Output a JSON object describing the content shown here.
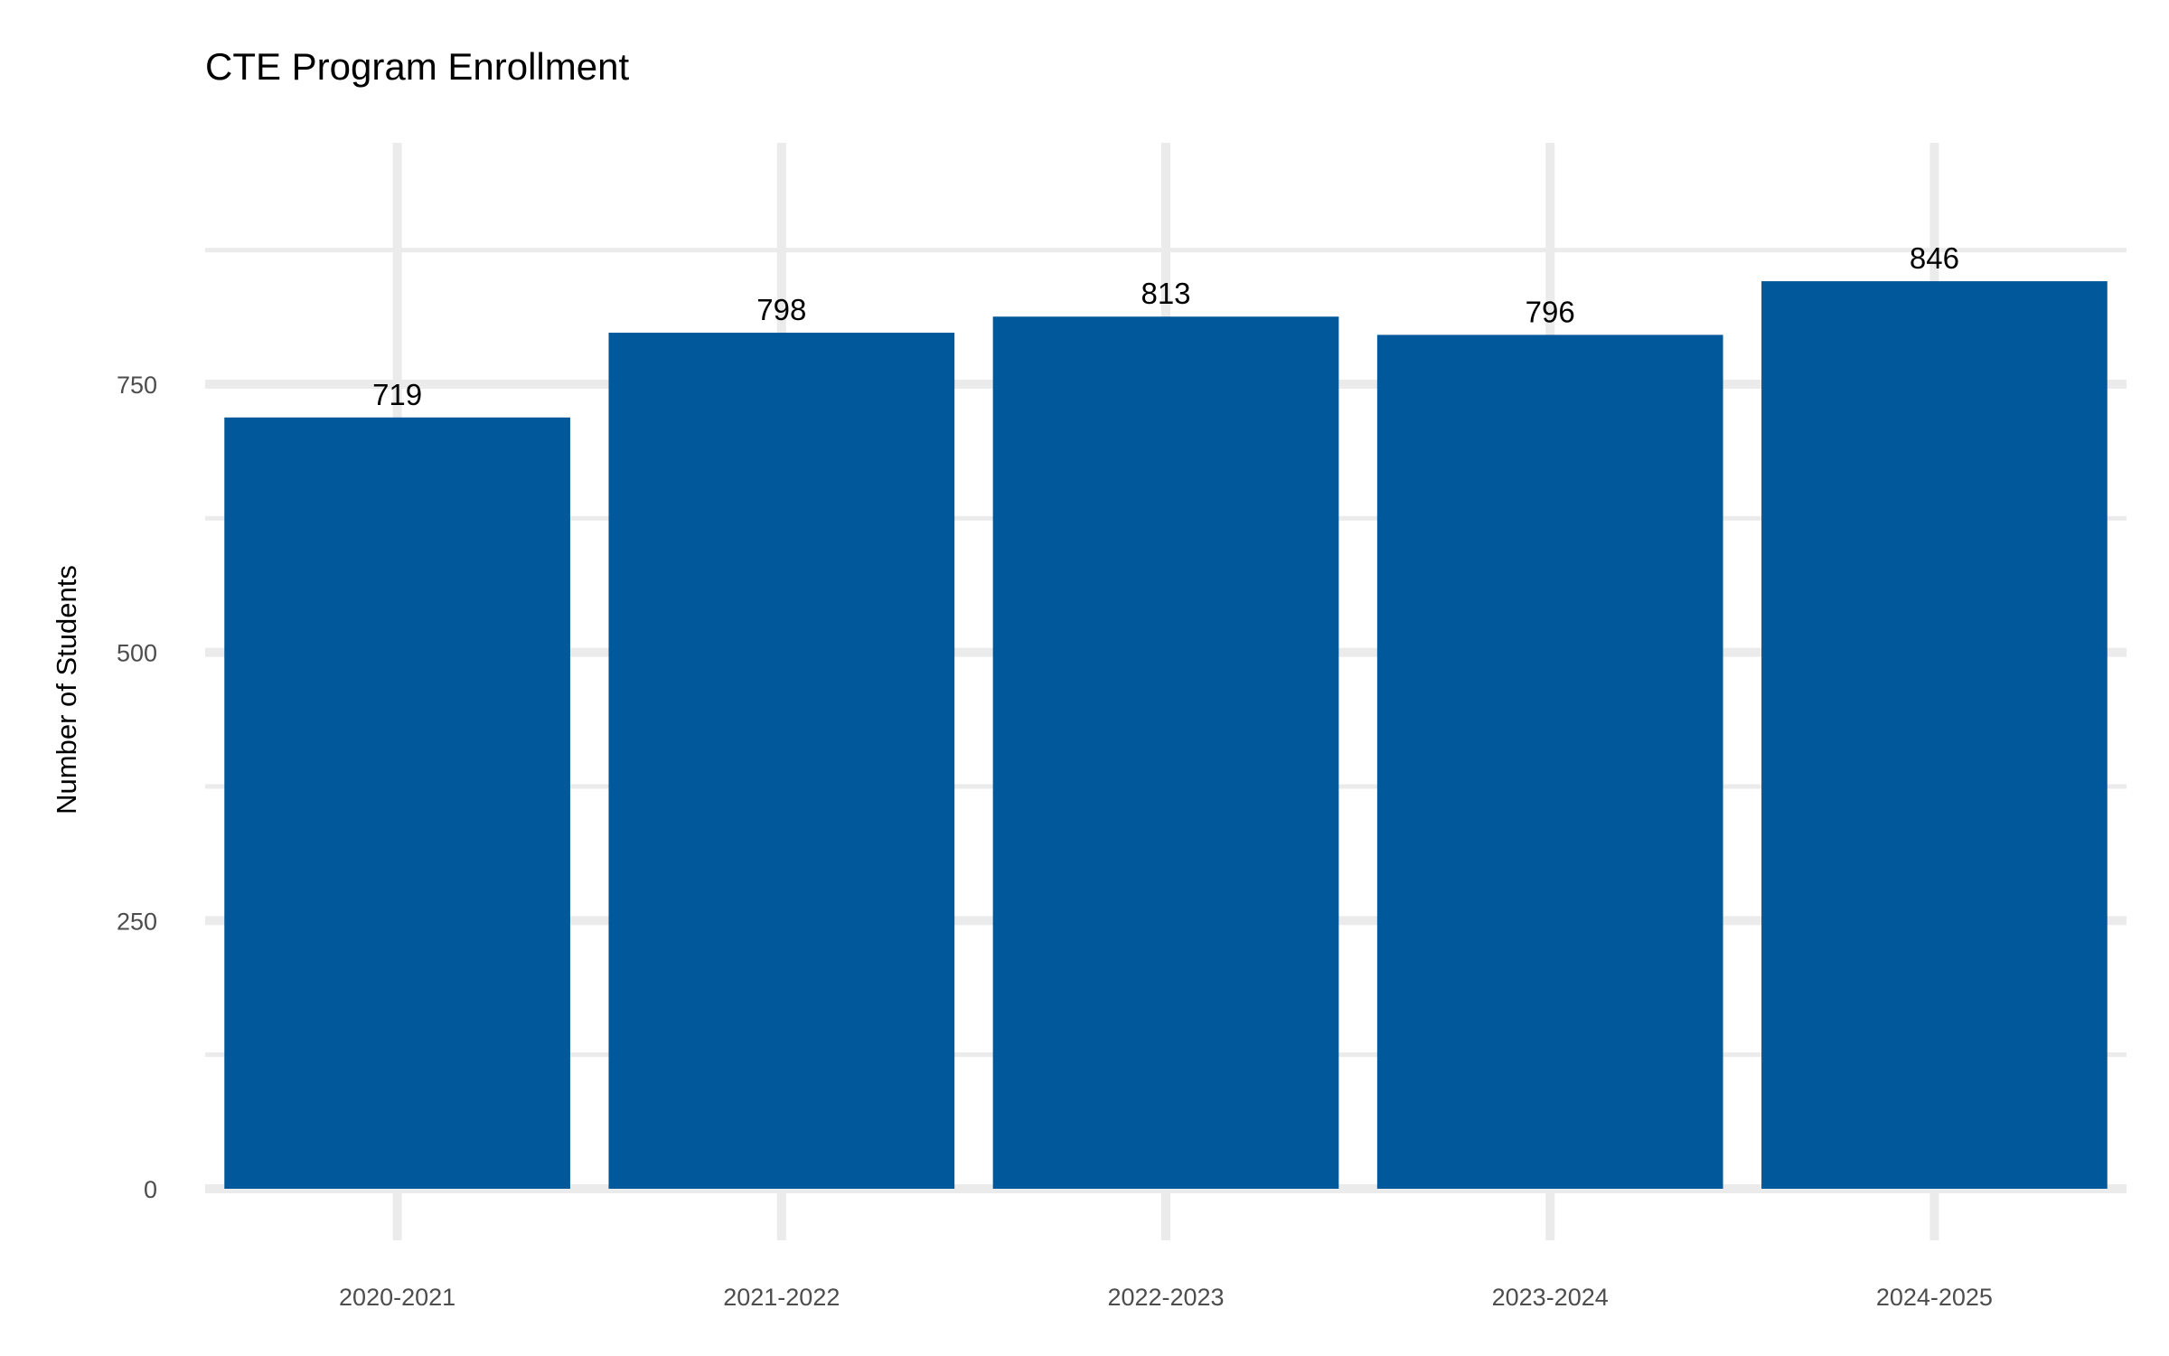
{
  "chart_data": {
    "type": "bar",
    "title": "CTE Program Enrollment",
    "xlabel": "",
    "ylabel": "Number of Students",
    "categories": [
      "2020-2021",
      "2021-2022",
      "2022-2023",
      "2023-2024",
      "2024-2025"
    ],
    "values": [
      719,
      798,
      813,
      796,
      846
    ],
    "ylim": [
      0,
      960
    ],
    "yticks": [
      0,
      250,
      500,
      750
    ],
    "grid": true,
    "legend": "none",
    "bar_color": "#01599b"
  }
}
